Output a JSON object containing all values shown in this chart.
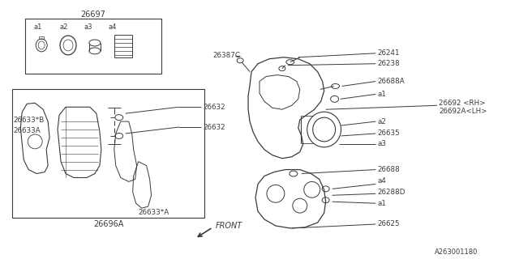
{
  "bg_color": "#ffffff",
  "line_color": "#3a3a3a",
  "text_color": "#3a3a3a",
  "fig_width": 6.4,
  "fig_height": 3.2,
  "dpi": 100,
  "labels": {
    "26697": "26697",
    "26387C": "26387C",
    "26241": "26241",
    "26238": "26238",
    "26688A": "26688A",
    "26635": "26635",
    "26688": "26688",
    "26288D": "26288D",
    "26625": "26625",
    "26692_RH": "26692 <RH>",
    "26692A_LH": "26692A<LH>",
    "26632": "26632",
    "26633B": "26633*B",
    "26633A": "26633A",
    "26633A2": "26633*A",
    "26696A": "26696A",
    "a1": "a1",
    "a2": "a2",
    "a3": "a3",
    "a4": "a4",
    "front": "FRONT",
    "code": "A263001180"
  }
}
